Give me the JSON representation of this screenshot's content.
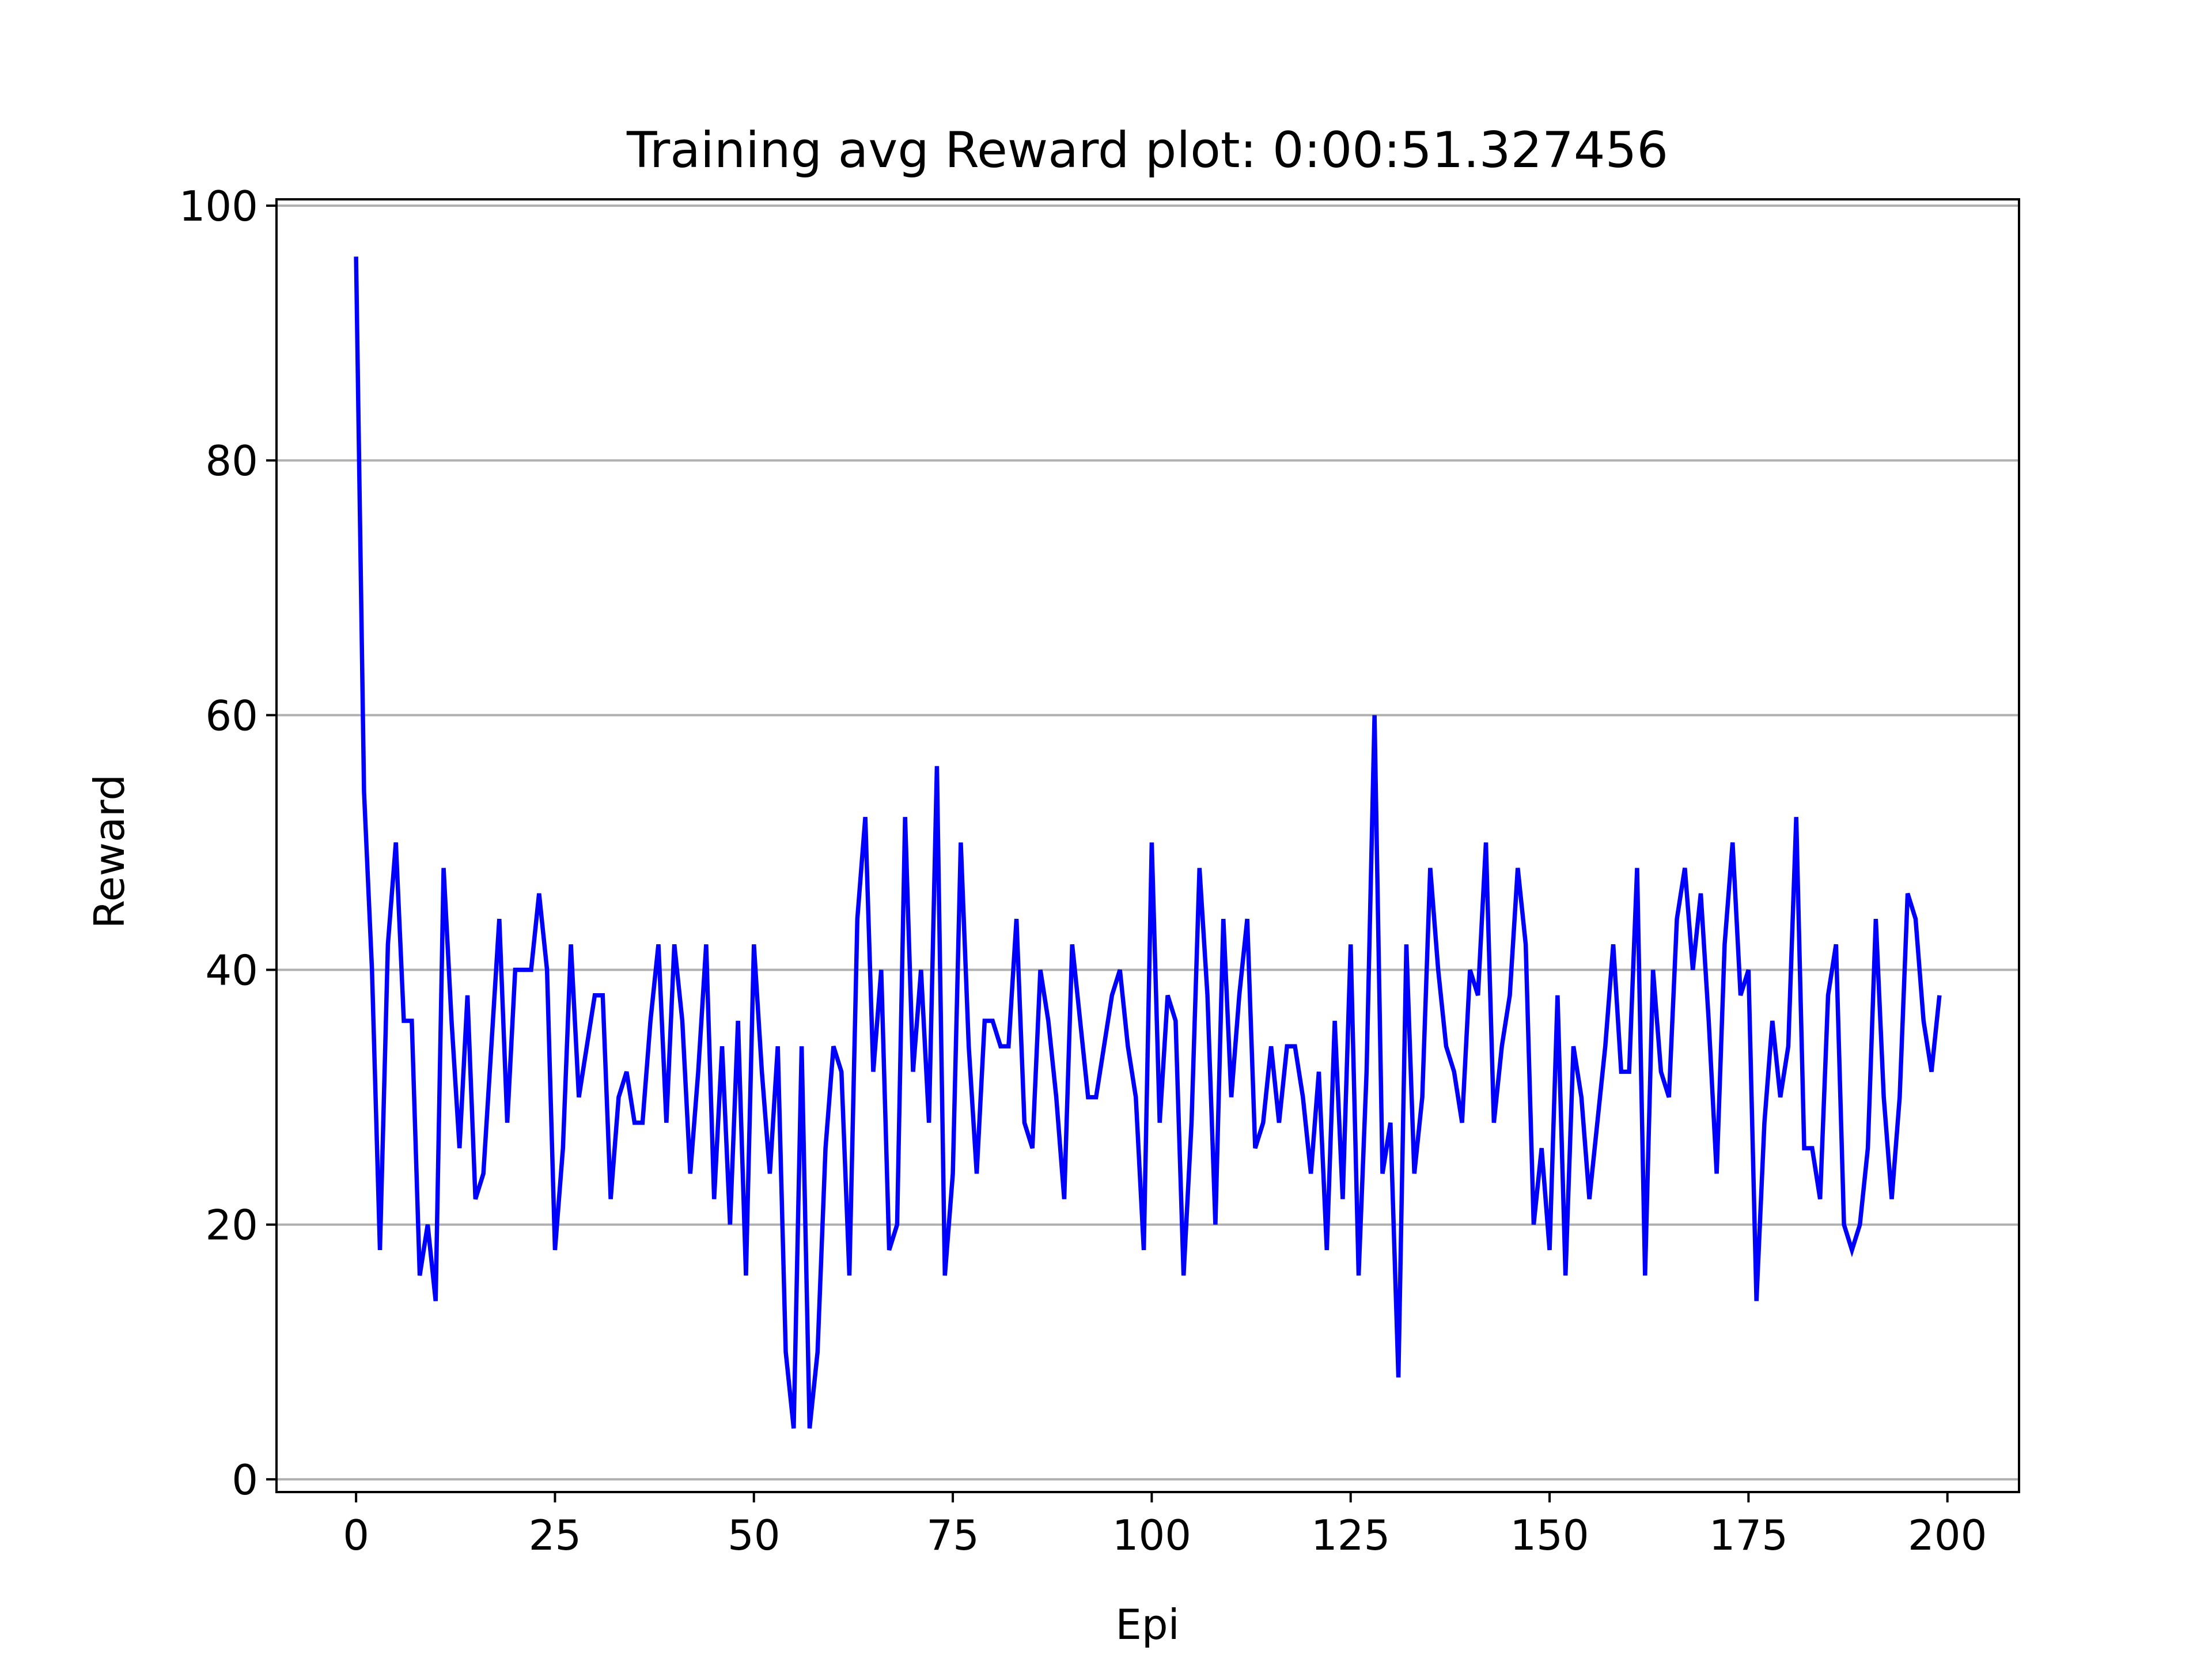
{
  "chart_data": {
    "type": "line",
    "title": "Training avg Reward plot: 0:00:51.327456",
    "xlabel": "Epi",
    "ylabel": "Reward",
    "xlim": [
      -10,
      209
    ],
    "ylim": [
      -1,
      100.5
    ],
    "x_ticks": [
      0,
      25,
      50,
      75,
      100,
      125,
      150,
      175,
      200
    ],
    "y_ticks": [
      0,
      20,
      40,
      60,
      80,
      100
    ],
    "grid": "horizontal",
    "line_color": "#0000ff",
    "grid_color": "#b0b0b0",
    "series": [
      {
        "x_start": 0,
        "x_step": 1,
        "values": [
          96,
          54,
          40,
          18,
          42,
          50,
          36,
          36,
          16,
          20,
          14,
          48,
          36,
          26,
          38,
          22,
          24,
          34,
          44,
          28,
          40,
          40,
          40,
          46,
          40,
          18,
          26,
          42,
          30,
          34,
          38,
          38,
          22,
          30,
          32,
          28,
          28,
          36,
          42,
          28,
          42,
          36,
          24,
          32,
          42,
          22,
          34,
          20,
          36,
          16,
          42,
          32,
          24,
          34,
          10,
          4,
          34,
          4,
          10,
          26,
          34,
          32,
          16,
          44,
          52,
          32,
          40,
          18,
          20,
          52,
          32,
          40,
          28,
          56,
          16,
          24,
          50,
          34,
          24,
          36,
          36,
          34,
          34,
          44,
          28,
          26,
          40,
          36,
          30,
          22,
          42,
          36,
          30,
          30,
          34,
          38,
          40,
          34,
          30,
          18,
          50,
          28,
          38,
          36,
          16,
          28,
          48,
          38,
          20,
          44,
          30,
          38,
          44,
          26,
          28,
          34,
          28,
          34,
          34,
          30,
          24,
          32,
          18,
          36,
          22,
          42,
          16,
          32,
          60,
          24,
          28,
          8,
          42,
          24,
          30,
          48,
          40,
          34,
          32,
          28,
          40,
          38,
          50,
          28,
          34,
          38,
          48,
          42,
          20,
          26,
          18,
          38,
          16,
          34,
          30,
          22,
          28,
          34,
          42,
          32,
          32,
          48,
          16,
          40,
          32,
          30,
          44,
          48,
          40,
          46,
          36,
          24,
          42,
          50,
          38,
          40,
          14,
          28,
          36,
          30,
          34,
          52,
          26,
          26,
          22,
          38,
          42,
          20,
          18,
          20,
          26,
          44,
          30,
          22,
          30,
          46,
          44,
          36,
          32,
          38
        ]
      }
    ]
  }
}
